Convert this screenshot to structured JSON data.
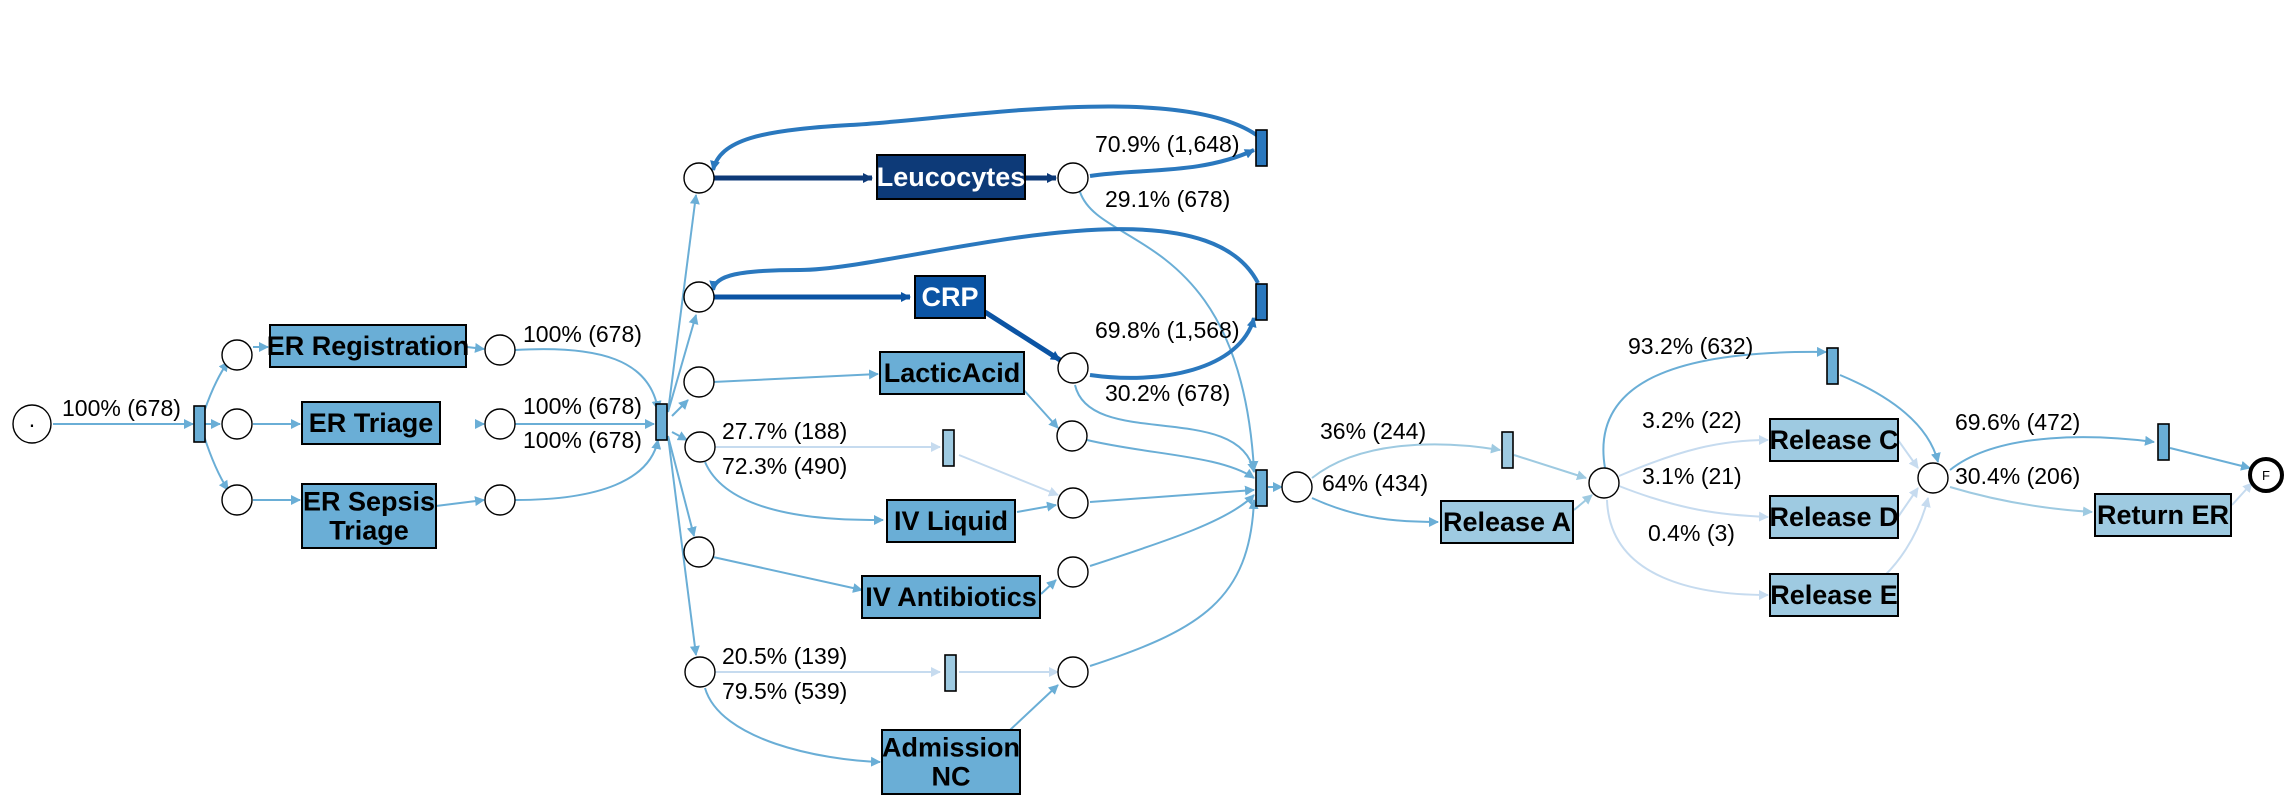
{
  "colors": {
    "dark": "#0d3a78",
    "darkblue": "#0b54a4",
    "blue": "#2a78be",
    "medium": "#6aaed6",
    "light": "#9ecae1",
    "pale": "#c6dbef"
  },
  "start_mark": "·",
  "final_mark": "F",
  "activities": [
    {
      "id": "er_registration",
      "lines": [
        "ER Registration"
      ],
      "color": "medium",
      "text": "#000000"
    },
    {
      "id": "er_triage",
      "lines": [
        "ER Triage"
      ],
      "color": "medium",
      "text": "#000000"
    },
    {
      "id": "er_sepsis_triage",
      "lines": [
        "ER Sepsis",
        "Triage"
      ],
      "color": "medium",
      "text": "#000000"
    },
    {
      "id": "leucocytes",
      "lines": [
        "Leucocytes"
      ],
      "color": "dark",
      "text": "#ffffff"
    },
    {
      "id": "crp",
      "lines": [
        "CRP"
      ],
      "color": "darkblue",
      "text": "#ffffff"
    },
    {
      "id": "lacticacid",
      "lines": [
        "LacticAcid"
      ],
      "color": "medium",
      "text": "#000000"
    },
    {
      "id": "iv_liquid",
      "lines": [
        "IV Liquid"
      ],
      "color": "medium",
      "text": "#000000"
    },
    {
      "id": "iv_antibiotics",
      "lines": [
        "IV Antibiotics"
      ],
      "color": "medium",
      "text": "#000000"
    },
    {
      "id": "admission_nc",
      "lines": [
        "Admission",
        "NC"
      ],
      "color": "medium",
      "text": "#000000"
    },
    {
      "id": "release_a",
      "lines": [
        "Release A"
      ],
      "color": "light",
      "text": "#000000"
    },
    {
      "id": "release_c",
      "lines": [
        "Release C"
      ],
      "color": "light",
      "text": "#000000"
    },
    {
      "id": "release_d",
      "lines": [
        "Release D"
      ],
      "color": "light",
      "text": "#000000"
    },
    {
      "id": "release_e",
      "lines": [
        "Release E"
      ],
      "color": "light",
      "text": "#000000"
    },
    {
      "id": "return_er",
      "lines": [
        "Return ER"
      ],
      "color": "light",
      "text": "#000000"
    }
  ],
  "edge_labels": {
    "start_split": "100% (678)",
    "er_registration": "100% (678)",
    "er_triage": "100% (678)",
    "er_sepsis_triage": "100% (678)",
    "leucocytes_loop": "70.9% (1,648)",
    "leucocytes_exit": "29.1% (678)",
    "crp_loop": "69.8% (1,568)",
    "crp_exit": "30.2% (678)",
    "lactic_skip": "27.7% (188)",
    "lactic_iv": "72.3% (490)",
    "admission_skip": "20.5% (139)",
    "admission_nc": "79.5% (539)",
    "release_skip": "36% (244)",
    "release_a": "64% (434)",
    "release_skip2": "93.2% (632)",
    "release_c": "3.2% (22)",
    "release_d": "3.1% (21)",
    "release_e": "0.4% (3)",
    "return_skip": "69.6% (472)",
    "return_er": "30.4% (206)"
  }
}
